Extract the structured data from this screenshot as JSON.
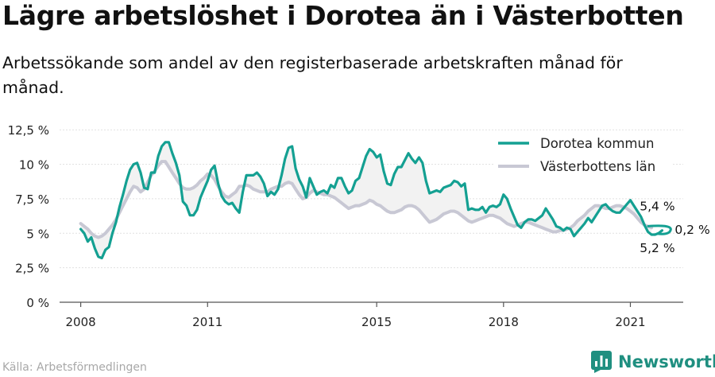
{
  "title": "Lägre arbetslöshet i Dorotea än i Västerbotten",
  "subtitle": "Arbetssökande som andel av den registerbaserade arbetskraften månad för månad.",
  "source": "Källa: Arbetsförmedlingen",
  "brand": "Newsworthy",
  "colors": {
    "dorotea": "#14a092",
    "vasterbotten": "#c8c8d4",
    "gap_fill": "#f2f2f2",
    "brand": "#1f8f80"
  },
  "chart_data": {
    "type": "line",
    "title": "",
    "xlabel": "",
    "ylabel": "",
    "x_ticks": [
      2008,
      2011,
      2015,
      2018,
      2021
    ],
    "y_ticks": [
      0,
      2.5,
      5,
      7.5,
      10,
      12.5
    ],
    "y_tick_labels": [
      "0 %",
      "2,5 %",
      "5 %",
      "7,5 %",
      "10 %",
      "12,5 %"
    ],
    "xlim": [
      2007.5,
      2022.25
    ],
    "ylim": [
      0,
      12.8
    ],
    "grid": "horizontal",
    "legend_position": "top-right",
    "x_interval": "monthly",
    "series": [
      {
        "name": "Dorotea kommun",
        "x_start": "2008-01",
        "values": [
          5.3,
          5.0,
          4.4,
          4.7,
          3.9,
          3.3,
          3.2,
          3.8,
          4.0,
          5.0,
          5.8,
          6.9,
          7.8,
          8.8,
          9.6,
          10.0,
          10.1,
          9.4,
          8.3,
          8.2,
          9.4,
          9.4,
          10.6,
          11.3,
          11.6,
          11.6,
          10.8,
          10.1,
          9.2,
          7.3,
          7.0,
          6.3,
          6.3,
          6.7,
          7.6,
          8.2,
          8.8,
          9.6,
          9.9,
          8.6,
          7.7,
          7.3,
          7.1,
          7.2,
          6.8,
          6.5,
          8.0,
          9.2,
          9.2,
          9.2,
          9.4,
          9.1,
          8.6,
          7.7,
          8.0,
          7.8,
          8.2,
          9.2,
          10.4,
          11.2,
          11.3,
          9.7,
          8.9,
          8.4,
          7.6,
          9.0,
          8.4,
          7.8,
          8.0,
          8.1,
          7.9,
          8.5,
          8.3,
          9.0,
          9.0,
          8.4,
          7.9,
          8.1,
          8.8,
          9.0,
          9.8,
          10.6,
          11.1,
          10.9,
          10.5,
          10.7,
          9.5,
          8.6,
          8.5,
          9.3,
          9.8,
          9.8,
          10.3,
          10.8,
          10.4,
          10.1,
          10.5,
          10.1,
          8.8,
          7.9,
          8.0,
          8.1,
          8.0,
          8.3,
          8.4,
          8.5,
          8.8,
          8.7,
          8.4,
          8.6,
          6.7,
          6.8,
          6.7,
          6.7,
          6.9,
          6.5,
          6.9,
          7.0,
          6.9,
          7.1,
          7.8,
          7.5,
          6.8,
          6.2,
          5.6,
          5.4,
          5.8,
          6.0,
          6.0,
          5.9,
          6.1,
          6.3,
          6.8,
          6.4,
          6.0,
          5.5,
          5.4,
          5.2,
          5.4,
          5.3,
          4.8,
          5.1,
          5.4,
          5.7,
          6.1,
          5.8,
          6.2,
          6.6,
          7.0,
          7.1,
          6.8,
          6.6,
          6.5,
          6.5,
          6.8,
          7.1,
          7.4,
          7.0,
          6.6,
          6.2,
          5.6,
          5.1,
          4.9,
          4.9,
          5.0,
          5.2
        ]
      },
      {
        "name": "Västerbottens län",
        "x_start": "2008-01",
        "values": [
          5.7,
          5.5,
          5.3,
          5.0,
          4.8,
          4.7,
          4.8,
          5.0,
          5.3,
          5.6,
          6.0,
          6.5,
          7.0,
          7.5,
          8.0,
          8.4,
          8.3,
          8.0,
          8.2,
          8.7,
          9.2,
          9.5,
          9.9,
          10.2,
          10.2,
          9.8,
          9.4,
          9.0,
          8.6,
          8.3,
          8.2,
          8.2,
          8.3,
          8.5,
          8.8,
          9.0,
          9.3,
          9.2,
          8.9,
          8.4,
          8.0,
          7.7,
          7.6,
          7.8,
          8.0,
          8.4,
          8.4,
          8.5,
          8.4,
          8.2,
          8.1,
          8.0,
          8.0,
          8.0,
          8.2,
          8.3,
          8.4,
          8.4,
          8.6,
          8.7,
          8.6,
          8.2,
          7.8,
          7.5,
          7.6,
          7.9,
          8.1,
          8.0,
          7.9,
          7.8,
          7.8,
          7.7,
          7.6,
          7.4,
          7.2,
          7.0,
          6.8,
          6.9,
          7.0,
          7.0,
          7.1,
          7.2,
          7.4,
          7.3,
          7.1,
          7.0,
          6.8,
          6.6,
          6.5,
          6.5,
          6.6,
          6.7,
          6.9,
          7.0,
          7.0,
          6.9,
          6.7,
          6.4,
          6.1,
          5.8,
          5.9,
          6.0,
          6.2,
          6.4,
          6.5,
          6.6,
          6.6,
          6.5,
          6.3,
          6.1,
          5.9,
          5.8,
          5.9,
          6.0,
          6.1,
          6.2,
          6.3,
          6.3,
          6.2,
          6.1,
          5.9,
          5.7,
          5.6,
          5.5,
          5.6,
          5.7,
          5.8,
          5.8,
          5.7,
          5.6,
          5.5,
          5.4,
          5.3,
          5.2,
          5.1,
          5.1,
          5.2,
          5.2,
          5.3,
          5.4,
          5.6,
          5.9,
          6.1,
          6.3,
          6.6,
          6.8,
          7.0,
          7.0,
          6.9,
          6.8,
          6.8,
          6.9,
          7.0,
          7.0,
          6.9,
          6.8,
          6.6,
          6.4,
          6.1,
          5.8,
          5.6,
          5.5,
          5.4
        ]
      }
    ],
    "annotations": [
      {
        "text": "5,4 %",
        "x": 2021.6,
        "y": 5.4,
        "anchor": "above"
      },
      {
        "text": "0,2 %",
        "x": 2021.8,
        "y": 5.3,
        "anchor": "right"
      },
      {
        "text": "5,2 %",
        "x": 2021.6,
        "y": 5.2,
        "anchor": "below"
      }
    ]
  }
}
